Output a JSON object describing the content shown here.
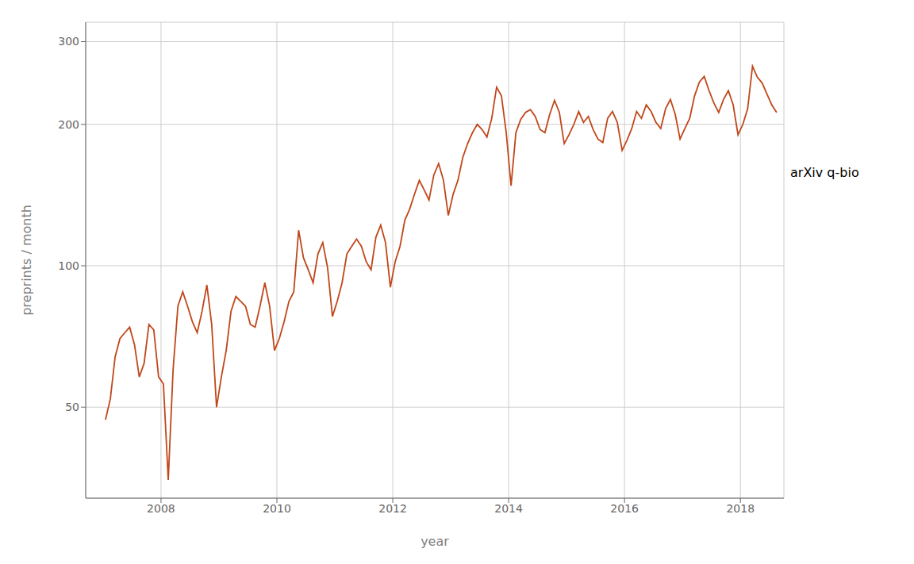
{
  "chart_data": {
    "type": "line",
    "title": "",
    "xlabel": "year",
    "ylabel": "preprints / month",
    "annotation": "arXiv q-bio",
    "color": "#C0471A",
    "log": "y",
    "grid": true,
    "xlim": [
      2006.7,
      2018.75
    ],
    "xticks": [
      2008,
      2010,
      2012,
      2014,
      2016,
      2018
    ],
    "ylim": [
      32,
      330
    ],
    "yticks": [
      50,
      100,
      200,
      300
    ],
    "x": [
      2007.041667,
      2007.125,
      2007.208333,
      2007.291667,
      2007.375,
      2007.458333,
      2007.541667,
      2007.625,
      2007.708333,
      2007.791667,
      2007.875,
      2007.958333,
      2008.041667,
      2008.125,
      2008.208333,
      2008.291667,
      2008.375,
      2008.458333,
      2008.541667,
      2008.625,
      2008.708333,
      2008.791667,
      2008.875,
      2008.958333,
      2009.041667,
      2009.125,
      2009.208333,
      2009.291667,
      2009.375,
      2009.458333,
      2009.541667,
      2009.625,
      2009.708333,
      2009.791667,
      2009.875,
      2009.958333,
      2010.041667,
      2010.125,
      2010.208333,
      2010.291667,
      2010.375,
      2010.458333,
      2010.541667,
      2010.625,
      2010.708333,
      2010.791667,
      2010.875,
      2010.958333,
      2011.041667,
      2011.125,
      2011.208333,
      2011.291667,
      2011.375,
      2011.458333,
      2011.541667,
      2011.625,
      2011.708333,
      2011.791667,
      2011.875,
      2011.958333,
      2012.041667,
      2012.125,
      2012.208333,
      2012.291667,
      2012.375,
      2012.458333,
      2012.541667,
      2012.625,
      2012.708333,
      2012.791667,
      2012.875,
      2012.958333,
      2013.041667,
      2013.125,
      2013.208333,
      2013.291667,
      2013.375,
      2013.458333,
      2013.541667,
      2013.625,
      2013.708333,
      2013.791667,
      2013.875,
      2013.958333,
      2014.041667,
      2014.125,
      2014.208333,
      2014.291667,
      2014.375,
      2014.458333,
      2014.541667,
      2014.625,
      2014.708333,
      2014.791667,
      2014.875,
      2014.958333,
      2015.041667,
      2015.125,
      2015.208333,
      2015.291667,
      2015.375,
      2015.458333,
      2015.541667,
      2015.625,
      2015.708333,
      2015.791667,
      2015.875,
      2015.958333,
      2016.041667,
      2016.125,
      2016.208333,
      2016.291667,
      2016.375,
      2016.458333,
      2016.541667,
      2016.625,
      2016.708333,
      2016.791667,
      2016.875,
      2016.958333,
      2017.041667,
      2017.125,
      2017.208333,
      2017.291667,
      2017.375,
      2017.458333,
      2017.541667,
      2017.625,
      2017.708333,
      2017.791667,
      2017.875,
      2017.958333,
      2018.041667,
      2018.125,
      2018.208333,
      2018.291667,
      2018.375,
      2018.458333,
      2018.541667,
      2018.625
    ],
    "values": [
      47,
      52,
      64,
      70,
      72,
      74,
      68,
      58,
      62,
      75,
      73,
      58,
      56,
      35,
      60,
      82,
      88,
      82,
      76,
      72,
      80,
      91,
      75,
      50,
      58,
      66,
      80,
      86,
      84,
      82,
      75,
      74,
      82,
      92,
      82,
      66,
      70,
      76,
      84,
      88,
      119,
      104,
      98,
      92,
      106,
      112,
      99,
      78,
      84,
      92,
      106,
      110,
      114,
      110,
      102,
      98,
      115,
      122,
      112,
      90,
      102,
      110,
      125,
      132,
      142,
      152,
      145,
      138,
      156,
      165,
      152,
      128,
      142,
      152,
      170,
      182,
      192,
      200,
      195,
      188,
      206,
      240,
      230,
      192,
      148,
      192,
      205,
      212,
      215,
      208,
      195,
      192,
      210,
      225,
      212,
      182,
      190,
      200,
      213,
      202,
      208,
      195,
      186,
      183,
      206,
      213,
      202,
      176,
      185,
      196,
      213,
      206,
      220,
      213,
      202,
      196,
      216,
      226,
      210,
      186,
      196,
      206,
      230,
      246,
      253,
      236,
      222,
      212,
      226,
      236,
      220,
      190,
      200,
      216,
      266,
      252,
      245,
      232,
      220,
      212
    ]
  }
}
